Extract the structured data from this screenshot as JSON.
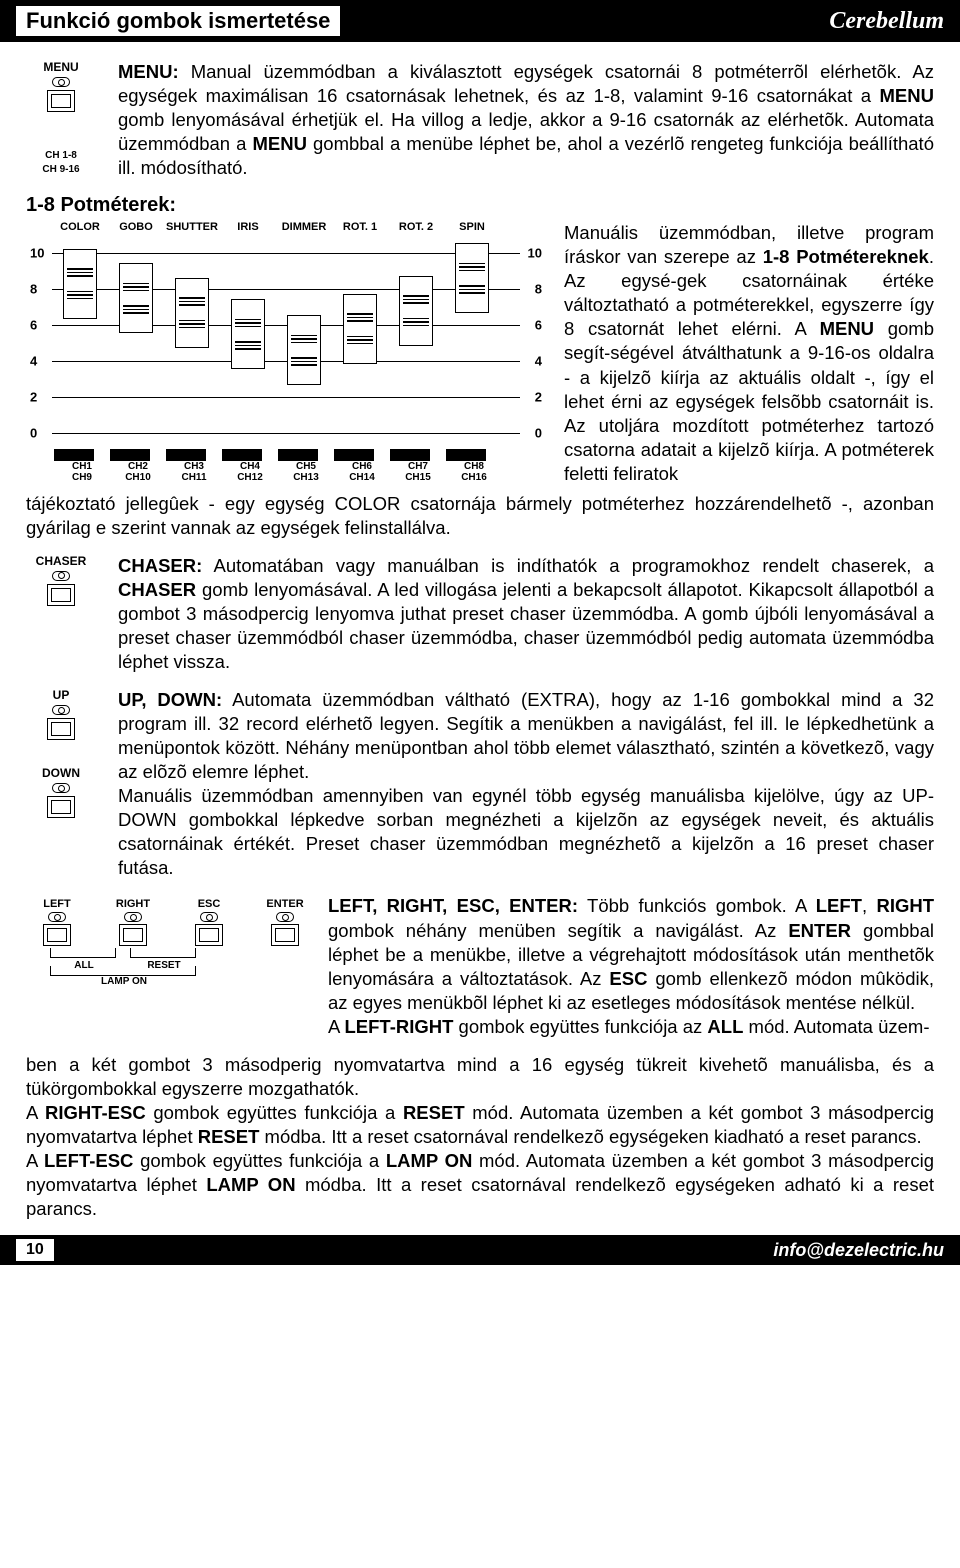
{
  "header": {
    "left": "Funkció gombok ismertetése",
    "right": "Cerebellum"
  },
  "menu": {
    "labelTop": "MENU",
    "labelBottom1": "CH 1-8",
    "labelBottom2": "CH 9-16",
    "text": "MENU: Manual üzemmódban a kiválasztott egységek csatornái 8 potméterrõl elérhetõk. Az egységek maximálisan 16 csatornásak lehetnek, és az 1-8, valamint 9-16 csatornákat a MENU gomb lenyomásával érhetjük el. Ha villog a ledje, akkor a 9-16 csatornák az elérhetõk. Automata üzemmódban a MENU gombbal a menübe léphet be, ahol a vezérlõ rengeteg funkciója beállítható ill. módosítható."
  },
  "pots": {
    "heading": "1-8 Potméterek:",
    "headers": [
      "COLOR",
      "GOBO",
      "SHUTTER",
      "IRIS",
      "DIMMER",
      "ROT. 1",
      "ROT. 2",
      "SPIN"
    ],
    "yTicks": [
      10,
      8,
      6,
      4,
      2,
      0
    ],
    "faderPositions": [
      83,
      75,
      67,
      55,
      46,
      58,
      68,
      86
    ],
    "channelsTop": [
      "CH1",
      "CH2",
      "CH3",
      "CH4",
      "CH5",
      "CH6",
      "CH7",
      "CH8"
    ],
    "channelsBottom": [
      "CH9",
      "CH10",
      "CH11",
      "CH12",
      "CH13",
      "CH14",
      "CH15",
      "CH16"
    ],
    "sideText": "Manuális üzemmódban, illetve program íráskor van szerepe az 1-8 Potmétereknek. Az egysé-gek csatornáinak értéke változtatható a potméterekkel, egyszerre így 8 csatornát lehet elérni. A MENU gomb segít-ségével átválthatunk a 9-16-os oldalra - a kijelzõ kiírja az aktuális oldalt -, így el lehet érni az egységek felsõbb csatornáit is. Az utoljára mozdított potméterhez tartozó csatorna adatait a kijelzõ kiírja. A potméterek feletti feliratok",
    "afterText": "tájékoztató jellegûek - egy egység COLOR csatornája bármely potméterhez hozzárendelhetõ -, azonban gyárilag e szerint vannak az egységek felinstallálva."
  },
  "chaser": {
    "labelTop": "CHASER",
    "text": "CHASER: Automatában vagy manuálban is indíthatók a programokhoz rendelt chaserek, a CHASER gomb lenyomásával. A led villogása jelenti a bekapcsolt állapotot. Kikapcsolt állapotból a gombot 3 másodpercig lenyomva juthat preset chaser üzemmódba. A gomb újbóli lenyomásával a preset chaser üzemmódból chaser üzemmódba, chaser üzemmódból pedig automata üzemmódba léphet vissza."
  },
  "updown": {
    "labelUp": "UP",
    "labelDown": "DOWN",
    "text": "UP, DOWN: Automata üzemmódban váltható (EXTRA), hogy az 1-16 gombokkal mind a 32 program ill. 32 record elérhetõ legyen. Segítik a menükben a navigálást, fel ill. le lépkedhetünk a menüpontok között. Néhány menüpontban ahol több elemet választható, szintén a következõ, vagy az elõzõ elemre léphet.\nManuális üzemmódban amennyiben van egynél több egység manuálisba kijelölve, úgy az UP-DOWN gombokkal lépkedve sorban megnézheti a kijelzõn az egységek neveit, és aktuális csatornáinak értékét. Preset chaser üzemmódban megnézhetõ a kijelzõn a 16 preset chaser futása."
  },
  "nav": {
    "labels": [
      "LEFT",
      "RIGHT",
      "ESC",
      "ENTER"
    ],
    "bracketAll": "ALL",
    "bracketReset": "RESET",
    "bracketLamp": "LAMP ON",
    "text": "LEFT, RIGHT, ESC, ENTER: Több funkciós gombok. A LEFT, RIGHT gombok néhány menüben segítik a navigálást. Az ENTER gombbal léphet be a menükbe, illetve a végrehajtott módosítások után menthetõk lenyomására a változtatások. Az ESC gomb ellenkezõ módon mûködik, az egyes menükbõl léphet ki az esetleges módosítások mentése nélkül.\nA LEFT-RIGHT gombok együttes funkciója az ALL mód. Automata üzem-",
    "afterText": "ben a két gombot 3 másodperig nyomvatartva mind a 16 egység tükreit kivehetõ manuálisba, és a tükörgombokkal egyszerre mozgathatók.\nA RIGHT-ESC gombok együttes funkciója a RESET mód. Automata üzemben a két gombot 3 másodpercig nyomvatartva léphet RESET módba. Itt a reset csatornával rendelkezõ egységeken kiadható a reset parancs.\nA LEFT-ESC gombok együttes funkciója a LAMP ON mód. Automata üzemben a két gombot 3 másodpercig nyomvatartva léphet LAMP ON módba. Itt a reset csatornával rendelkezõ egységeken adható ki a reset parancs."
  },
  "footer": {
    "page": "10",
    "email": "info@dezelectric.hu"
  }
}
